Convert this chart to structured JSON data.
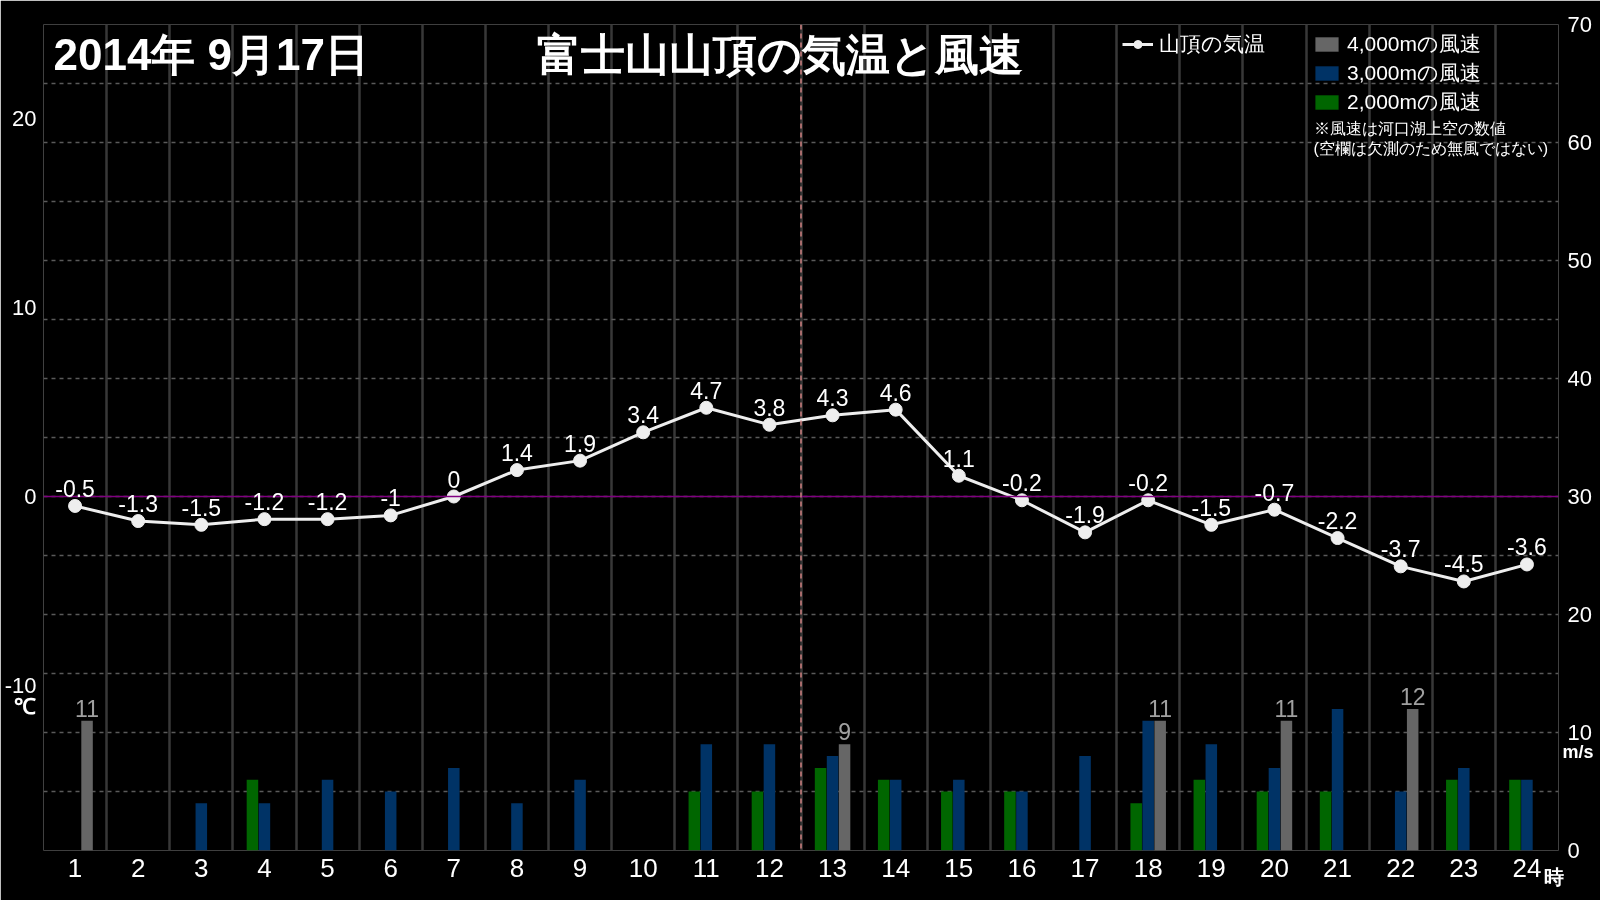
{
  "chart_data": {
    "type": "bar",
    "title": "富士山山頂の気温と風速",
    "subtitle": "2014年 9月17日",
    "xlabel": "時",
    "ylabel": "℃",
    "y2label": "m/s",
    "x": [
      1,
      2,
      3,
      4,
      5,
      6,
      7,
      8,
      9,
      10,
      11,
      12,
      13,
      14,
      15,
      16,
      17,
      18,
      19,
      20,
      21,
      22,
      23,
      24
    ],
    "xlim": [
      0.5,
      24.5
    ],
    "xticks": [
      1,
      2,
      3,
      4,
      5,
      6,
      7,
      8,
      9,
      10,
      11,
      12,
      13,
      14,
      15,
      16,
      17,
      18,
      19,
      20,
      21,
      22,
      23,
      24
    ],
    "ylim": [
      -18.75,
      25
    ],
    "yticks": [
      -10,
      0,
      10,
      20
    ],
    "y2lim": [
      0,
      70
    ],
    "y2ticks": [
      0,
      {
        "value": 5,
        "label": null
      },
      10,
      {
        "value": 15,
        "label": null
      },
      20,
      {
        "value": 25,
        "label": null
      },
      30,
      {
        "value": 35,
        "label": null
      },
      40,
      {
        "value": 45,
        "label": null
      },
      50,
      {
        "value": 55,
        "label": null
      },
      60,
      {
        "value": 65,
        "label": null
      },
      70
    ],
    "grid": true,
    "legend": "top right",
    "marker": "circle",
    "ref_lines": [
      {
        "axis": "y",
        "value": 0,
        "color": "#800080"
      },
      {
        "axis": "x",
        "value": 12.5,
        "color": "#d08080",
        "line_style": "dashed"
      }
    ],
    "annotations": [
      "※風速は河口湖上空の数値",
      "(空欄は欠測のため無風ではない)"
    ],
    "series": [
      {
        "name": "山頂の気温",
        "type": "line",
        "color": "#eeeeee",
        "values": [
          -0.5,
          -1.3,
          -1.5,
          -1.2,
          -1.2,
          -1,
          0,
          1.4,
          1.9,
          3.4,
          4.7,
          3.8,
          4.3,
          4.6,
          1.1,
          -0.2,
          -1.9,
          -0.2,
          -1.5,
          -0.7,
          -2.2,
          -3.7,
          -4.5,
          -3.6
        ],
        "value_labels": [
          "-0.5",
          "-1.3",
          "-1.5",
          "-1.2",
          "-1.2",
          "-1",
          "0",
          "1.4",
          "1.9",
          "3.4",
          "4.7",
          "3.8",
          "4.3",
          "4.6",
          "1.1",
          "-0.2",
          "-1.9",
          "-0.2",
          "-1.5",
          "-0.7",
          "-2.2",
          "-3.7",
          "-4.5",
          "-3.6"
        ]
      },
      {
        "name": "4,000mの風速",
        "color": "#666666",
        "axis": "y2",
        "values": [
          11,
          null,
          null,
          null,
          null,
          null,
          null,
          null,
          null,
          null,
          null,
          null,
          9,
          null,
          null,
          null,
          null,
          11,
          null,
          11,
          null,
          12,
          null,
          null
        ],
        "value_labels": [
          "11",
          null,
          null,
          null,
          null,
          null,
          null,
          null,
          null,
          null,
          null,
          null,
          "9",
          null,
          null,
          null,
          null,
          "11",
          null,
          "11",
          null,
          "12",
          null,
          null
        ]
      },
      {
        "name": "3,000mの風速",
        "color": "#003366",
        "axis": "y2",
        "values": [
          null,
          null,
          4,
          4,
          6,
          5,
          7,
          4,
          6,
          null,
          9,
          9,
          8,
          6,
          6,
          5,
          8,
          11,
          9,
          7,
          12,
          5,
          7,
          6
        ]
      },
      {
        "name": "2,000mの風速",
        "color": "#006600",
        "axis": "y2",
        "values": [
          null,
          null,
          null,
          6,
          null,
          null,
          null,
          null,
          null,
          null,
          5,
          5,
          7,
          6,
          5,
          5,
          null,
          4,
          6,
          5,
          5,
          null,
          6,
          6
        ]
      }
    ]
  }
}
